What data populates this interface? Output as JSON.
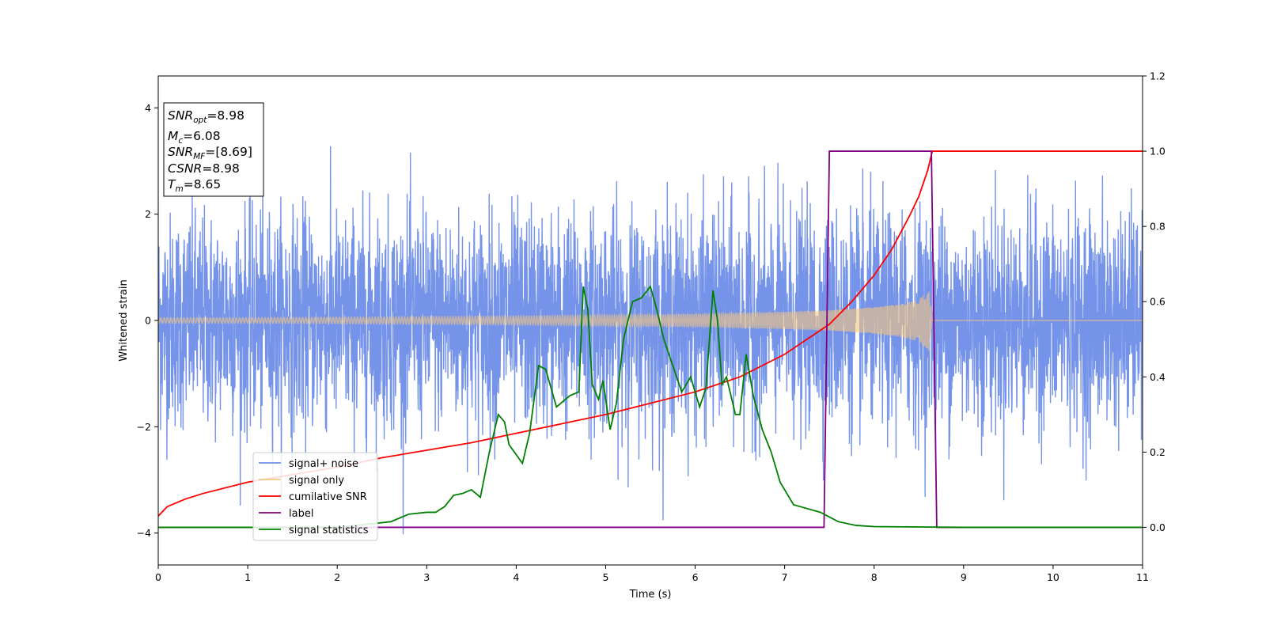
{
  "chart_data": {
    "type": "line",
    "title": "",
    "xlabel": "Time (s)",
    "ylabel_left": "Whitened strain",
    "ylabel_right": "",
    "xlim": [
      0,
      11
    ],
    "ylim_left": [
      -4.6,
      4.6
    ],
    "ylim_right": [
      -0.1,
      1.2
    ],
    "x_ticks": [
      0,
      1,
      2,
      3,
      4,
      5,
      6,
      7,
      8,
      9,
      10,
      11
    ],
    "x_tick_labels": [
      "0",
      "1",
      "2",
      "3",
      "4",
      "5",
      "6",
      "7",
      "8",
      "9",
      "10",
      "11"
    ],
    "y_left_ticks": [
      4,
      2,
      0,
      -2,
      -4
    ],
    "y_left_tick_labels": [
      "4",
      "2",
      "0",
      "−2",
      "−4"
    ],
    "y_right_ticks": [
      1.2,
      1.0,
      0.8,
      0.6,
      0.4,
      0.2,
      0.0
    ],
    "y_right_tick_labels": [
      "1.2",
      "1.0",
      "0.8",
      "0.6",
      "0.4",
      "0.2",
      "0.0"
    ],
    "grid": false,
    "legend_position": "lower-left",
    "colors": {
      "signal_noise": "#6e8ee8",
      "signal_only": "#f5c77e",
      "cumulative_snr": "#ff0000",
      "label": "#800080",
      "signal_statistics": "#008000"
    },
    "annotation": {
      "snr_opt": {
        "name": "SNR",
        "sub": "opt",
        "value": "=8.98"
      },
      "mc": {
        "name": "M",
        "sub": "c",
        "value": "=6.08"
      },
      "snr_mf": {
        "name": "SNR",
        "sub": "MF",
        "value": "=[8.69]"
      },
      "csnr": {
        "name": "CSNR",
        "value": "=8.98"
      },
      "tm": {
        "name": "T",
        "sub": "m",
        "value": "=8.65"
      }
    },
    "series": [
      {
        "name": "signal+ noise",
        "axis": "left",
        "kind": "noise",
        "description_values": {
          "std": 1.0,
          "x_range": [
            0,
            11
          ],
          "max": 4.2,
          "min": -4.15
        }
      },
      {
        "name": "signal only",
        "axis": "left",
        "kind": "chirp",
        "envelope": {
          "x": [
            0,
            1,
            2,
            3,
            4,
            5,
            6,
            7,
            7.5,
            8,
            8.3,
            8.5,
            8.62,
            8.65,
            11
          ],
          "amp": [
            0.05,
            0.05,
            0.06,
            0.07,
            0.08,
            0.1,
            0.12,
            0.16,
            0.19,
            0.25,
            0.31,
            0.4,
            0.58,
            0,
            0
          ]
        }
      },
      {
        "name": "cumilative SNR",
        "axis": "right",
        "x": [
          0,
          0.1,
          0.3,
          0.5,
          1,
          1.5,
          2,
          2.5,
          3,
          3.5,
          4,
          4.5,
          5,
          5.5,
          6,
          6.5,
          7,
          7.25,
          7.5,
          7.75,
          8,
          8.2,
          8.4,
          8.5,
          8.6,
          8.65,
          11
        ],
        "y": [
          0.03,
          0.055,
          0.075,
          0.09,
          0.12,
          0.14,
          0.16,
          0.185,
          0.205,
          0.225,
          0.25,
          0.275,
          0.3,
          0.33,
          0.36,
          0.4,
          0.46,
          0.5,
          0.54,
          0.6,
          0.67,
          0.74,
          0.83,
          0.88,
          0.95,
          1.0,
          1.0
        ]
      },
      {
        "name": "label",
        "axis": "right",
        "x": [
          0,
          7.44,
          7.5,
          8.64,
          8.7,
          11
        ],
        "y": [
          0,
          0,
          1,
          1,
          0,
          0
        ]
      },
      {
        "name": "signal statistics",
        "axis": "right",
        "x": [
          0,
          1,
          2,
          2.4,
          2.6,
          2.8,
          3.0,
          3.1,
          3.2,
          3.3,
          3.4,
          3.5,
          3.6,
          3.7,
          3.8,
          3.87,
          3.92,
          4.07,
          4.15,
          4.25,
          4.33,
          4.45,
          4.6,
          4.7,
          4.75,
          4.8,
          4.85,
          4.92,
          4.97,
          5.05,
          5.12,
          5.2,
          5.3,
          5.4,
          5.5,
          5.57,
          5.65,
          5.75,
          5.85,
          5.95,
          6.05,
          6.12,
          6.2,
          6.25,
          6.3,
          6.35,
          6.45,
          6.5,
          6.57,
          6.65,
          6.75,
          6.85,
          6.95,
          7.1,
          7.25,
          7.4,
          7.6,
          7.8,
          8,
          8.5,
          9,
          11
        ],
        "y": [
          0,
          0,
          0,
          0.01,
          0.015,
          0.035,
          0.04,
          0.04,
          0.055,
          0.085,
          0.09,
          0.1,
          0.08,
          0.2,
          0.3,
          0.28,
          0.22,
          0.17,
          0.25,
          0.43,
          0.42,
          0.32,
          0.35,
          0.36,
          0.64,
          0.58,
          0.38,
          0.34,
          0.39,
          0.26,
          0.33,
          0.5,
          0.6,
          0.61,
          0.64,
          0.58,
          0.5,
          0.43,
          0.36,
          0.4,
          0.32,
          0.37,
          0.63,
          0.55,
          0.38,
          0.4,
          0.3,
          0.3,
          0.46,
          0.35,
          0.26,
          0.2,
          0.12,
          0.06,
          0.05,
          0.04,
          0.015,
          0.005,
          0.002,
          0.001,
          0.0,
          0.0
        ]
      }
    ]
  }
}
